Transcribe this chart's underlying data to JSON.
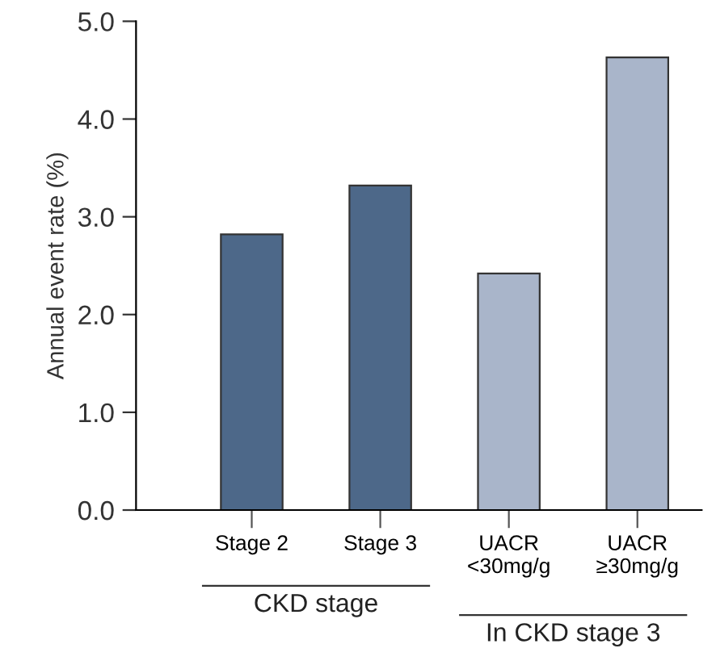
{
  "chart_data": {
    "type": "bar",
    "categories": [
      "Stage 2",
      "Stage 3",
      "UACR\n<30mg/g",
      "UACR\n≥30mg/g"
    ],
    "values": [
      2.82,
      3.32,
      2.42,
      4.63
    ],
    "colors": [
      "#4d6889",
      "#4d6889",
      "#a9b5ca",
      "#a9b5ca"
    ],
    "ylabel": "Annual event rate (%)",
    "ylim": [
      0,
      5
    ],
    "yticks": [
      {
        "value": 0,
        "label": "0.0"
      },
      {
        "value": 1,
        "label": "1.0"
      },
      {
        "value": 2,
        "label": "2.0"
      },
      {
        "value": 3,
        "label": "3.0"
      },
      {
        "value": 4,
        "label": "4.0"
      },
      {
        "value": 5,
        "label": "5.0"
      }
    ],
    "annotations": [
      "CKD stage",
      "In CKD stage 3"
    ],
    "grid": false
  }
}
